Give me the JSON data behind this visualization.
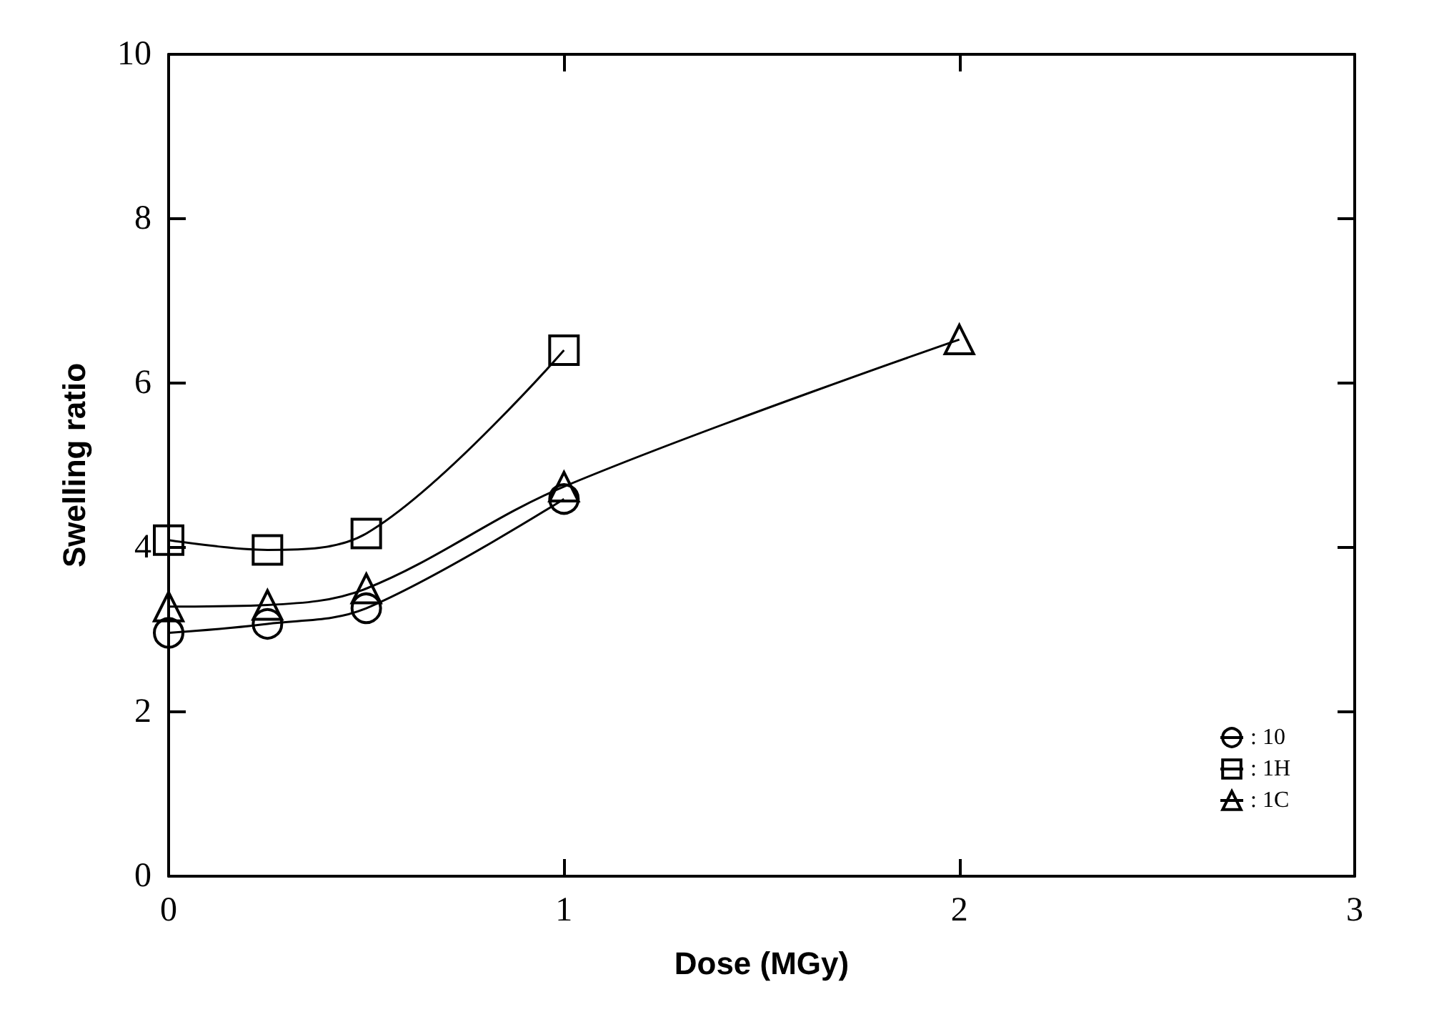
{
  "chart_data": {
    "type": "line",
    "xlabel": "Dose (MGy)",
    "ylabel": "Swelling ratio",
    "xlim": [
      0,
      3
    ],
    "xticks": [
      0,
      1,
      2,
      3
    ],
    "ylim": [
      0,
      10
    ],
    "yticks": [
      0,
      2,
      4,
      6,
      8,
      10
    ],
    "grid": false,
    "legend": "bottom right",
    "line_style": "solid",
    "series": [
      {
        "name": ": 10",
        "color": "#000000",
        "marker": "circle",
        "x": [
          0,
          0.25,
          0.5,
          1
        ],
        "values": [
          2.96,
          3.07,
          3.26,
          4.59
        ]
      },
      {
        "name": ": 1H",
        "color": "#000000",
        "marker": "square",
        "x": [
          0,
          0.25,
          0.5,
          1
        ],
        "values": [
          4.09,
          3.97,
          4.17,
          6.4
        ]
      },
      {
        "name": ": 1C",
        "color": "#000000",
        "marker": "triangle",
        "x": [
          0,
          0.25,
          0.5,
          1,
          2
        ],
        "values": [
          3.28,
          3.3,
          3.5,
          4.74,
          6.53
        ]
      }
    ]
  }
}
